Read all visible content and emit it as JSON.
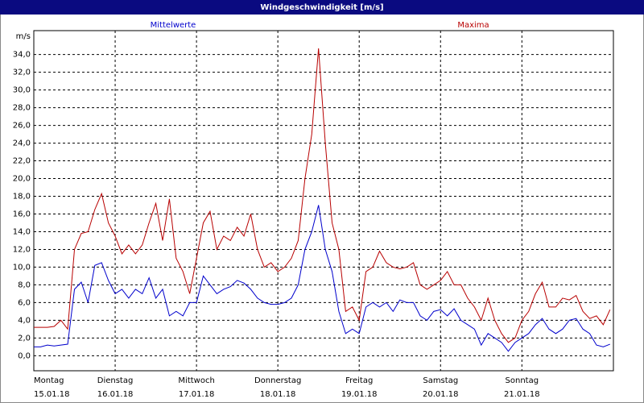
{
  "chart_data": {
    "type": "line",
    "title": "Windgeschwindigkeit [m/s]",
    "y_label": "m/s",
    "x": [
      0,
      2,
      4,
      6,
      8,
      10,
      12,
      14,
      16,
      18,
      20,
      22,
      24,
      26,
      28,
      30,
      32,
      34,
      36,
      38,
      40,
      42,
      44,
      46,
      48,
      50,
      52,
      54,
      56,
      58,
      60,
      62,
      64,
      66,
      68,
      70,
      72,
      74,
      76,
      78,
      80,
      82,
      84,
      86,
      88,
      90,
      92,
      94,
      96,
      98,
      100,
      102,
      104,
      106,
      108,
      110,
      112,
      114,
      116,
      118,
      120,
      122,
      124,
      126,
      128,
      130,
      132,
      134,
      136,
      138,
      140,
      142,
      144,
      146,
      148,
      150,
      152,
      154,
      156,
      158,
      160,
      162,
      164,
      166,
      168,
      170
    ],
    "xlim": [
      0,
      171
    ],
    "xticks": [
      {
        "value": 0,
        "label": "Montag"
      },
      {
        "value": 24,
        "label": "Dienstag"
      },
      {
        "value": 48,
        "label": "Mittwoch"
      },
      {
        "value": 72,
        "label": "Donnerstag"
      },
      {
        "value": 96,
        "label": "Freitag"
      },
      {
        "value": 120,
        "label": "Samstag"
      },
      {
        "value": 144,
        "label": "Sonntag"
      }
    ],
    "xtick_dates": [
      "15.01.18",
      "16.01.18",
      "17.01.18",
      "18.01.18",
      "19.01.18",
      "20.01.18",
      "21.01.18"
    ],
    "ylim": [
      -1.7,
      36.7
    ],
    "yticks": [
      {
        "value": 0,
        "label": "0,0"
      },
      {
        "value": 2,
        "label": "2,0"
      },
      {
        "value": 4,
        "label": "4,0"
      },
      {
        "value": 6,
        "label": "6,0"
      },
      {
        "value": 8,
        "label": "8,0"
      },
      {
        "value": 10,
        "label": "10,0"
      },
      {
        "value": 12,
        "label": "12,0"
      },
      {
        "value": 14,
        "label": "14,0"
      },
      {
        "value": 16,
        "label": "16,0"
      },
      {
        "value": 18,
        "label": "18,0"
      },
      {
        "value": 20,
        "label": "20,0"
      },
      {
        "value": 22,
        "label": "22,0"
      },
      {
        "value": 24,
        "label": "24,0"
      },
      {
        "value": 26,
        "label": "26,0"
      },
      {
        "value": 28,
        "label": "28,0"
      },
      {
        "value": 30,
        "label": "30,0"
      },
      {
        "value": 32,
        "label": "32,0"
      },
      {
        "value": 34,
        "label": "34,0"
      }
    ],
    "grid": true,
    "series": [
      {
        "name": "Mittelwerte",
        "color": "#0000cc",
        "values": [
          1.0,
          1.0,
          1.2,
          1.1,
          1.2,
          1.3,
          7.5,
          8.3,
          6.0,
          10.2,
          10.5,
          8.5,
          7.0,
          7.5,
          6.5,
          7.5,
          7.0,
          8.8,
          6.5,
          7.5,
          4.5,
          5.0,
          4.5,
          6.0,
          6.0,
          9.0,
          8.0,
          7.0,
          7.5,
          7.8,
          8.5,
          8.2,
          7.5,
          6.5,
          6.0,
          5.8,
          5.8,
          6.0,
          6.5,
          8.0,
          12.0,
          14.0,
          17.0,
          12.0,
          9.5,
          5.0,
          2.5,
          3.0,
          2.5,
          5.5,
          6.0,
          5.5,
          6.0,
          5.0,
          6.3,
          6.0,
          6.0,
          4.5,
          4.0,
          5.0,
          5.2,
          4.5,
          5.3,
          4.0,
          3.5,
          3.0,
          1.2,
          2.5,
          2.0,
          1.5,
          0.5,
          1.5,
          2.0,
          2.5,
          3.5,
          4.2,
          3.0,
          2.5,
          3.0,
          4.0,
          4.2,
          3.0,
          2.5,
          1.2,
          1.0,
          1.3
        ]
      },
      {
        "name": "Maxima",
        "color": "#b80000",
        "values": [
          3.2,
          3.2,
          3.2,
          3.3,
          4.0,
          3.0,
          12.0,
          13.8,
          14.0,
          16.5,
          18.3,
          15.0,
          13.5,
          11.5,
          12.5,
          11.5,
          12.5,
          15.0,
          17.2,
          13.0,
          17.7,
          11.0,
          9.5,
          7.0,
          11.0,
          15.0,
          16.3,
          12.0,
          13.5,
          13.0,
          14.5,
          13.5,
          16.0,
          12.0,
          10.0,
          10.5,
          9.5,
          10.0,
          11.0,
          13.0,
          20.0,
          25.0,
          34.7,
          24.0,
          15.0,
          12.0,
          5.0,
          5.5,
          4.0,
          9.5,
          10.0,
          11.8,
          10.5,
          10.0,
          9.8,
          10.0,
          10.5,
          8.0,
          7.5,
          8.0,
          8.5,
          9.5,
          8.0,
          8.0,
          6.5,
          5.5,
          4.0,
          6.5,
          4.0,
          2.5,
          1.5,
          2.0,
          4.0,
          5.0,
          7.0,
          8.3,
          5.5,
          5.5,
          6.5,
          6.3,
          6.8,
          5.0,
          4.2,
          4.5,
          3.5,
          5.2
        ]
      }
    ]
  }
}
